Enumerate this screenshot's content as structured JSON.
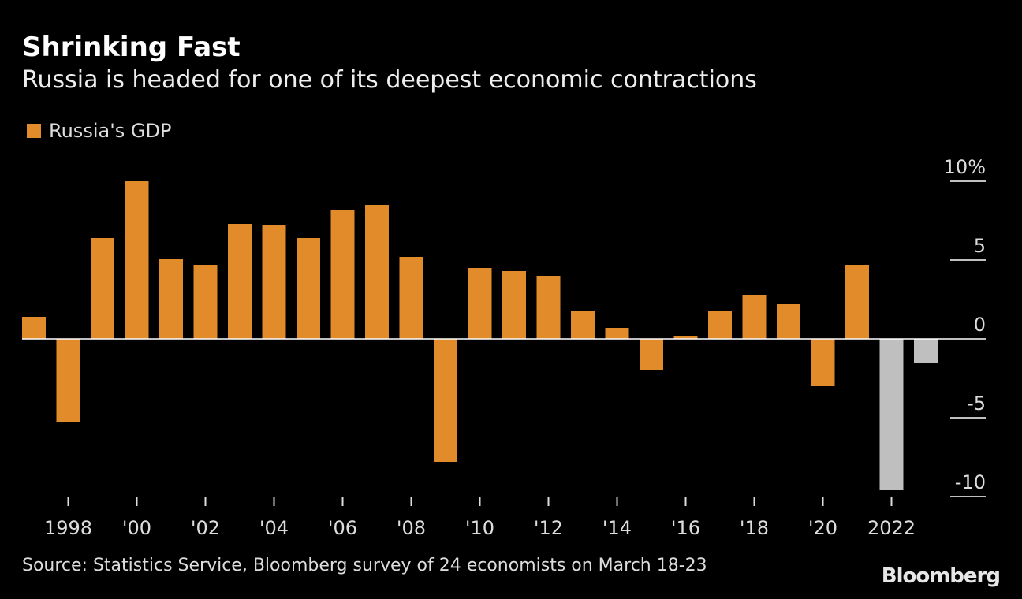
{
  "chart_data": {
    "type": "bar",
    "title": "Shrinking Fast",
    "subtitle": "Russia is headed for one of its deepest economic contractions",
    "legend": [
      {
        "name": "Russia's GDP",
        "color": "#e28b2a"
      }
    ],
    "legend_placement": "top-left",
    "categories": [
      1997,
      1998,
      1999,
      2000,
      2001,
      2002,
      2003,
      2004,
      2005,
      2006,
      2007,
      2008,
      2009,
      2010,
      2011,
      2012,
      2013,
      2014,
      2015,
      2016,
      2017,
      2018,
      2019,
      2020,
      2021,
      2022,
      2023
    ],
    "series": [
      {
        "name": "Russia's GDP",
        "values": [
          1.4,
          -5.3,
          6.4,
          10.0,
          5.1,
          4.7,
          7.3,
          7.2,
          6.4,
          8.2,
          8.5,
          5.2,
          -7.8,
          4.5,
          4.3,
          4.0,
          1.8,
          0.7,
          -2.0,
          0.2,
          1.8,
          2.8,
          2.2,
          -3.0,
          4.7,
          -9.6,
          -1.5
        ],
        "forecast_from": 2022
      }
    ],
    "colors": {
      "actual": "#e28b2a",
      "forecast": "#bfbfbf"
    },
    "ylim": [
      -10,
      10
    ],
    "y_ticks": [
      "10%",
      "5",
      "0",
      "-5",
      "-10"
    ],
    "y_tick_values": [
      10,
      5,
      0,
      -5,
      -10
    ],
    "x_tick_labels": [
      "1998",
      "'00",
      "'02",
      "'04",
      "'06",
      "'08",
      "'10",
      "'12",
      "'14",
      "'16",
      "'18",
      "'20",
      "2022"
    ],
    "x_tick_years": [
      1998,
      2000,
      2002,
      2004,
      2006,
      2008,
      2010,
      2012,
      2014,
      2016,
      2018,
      2020,
      2022
    ],
    "grid": false
  },
  "source": "Source: Statistics Service, Bloomberg survey of 24 economists on March 18-23",
  "logo": "Bloomberg"
}
